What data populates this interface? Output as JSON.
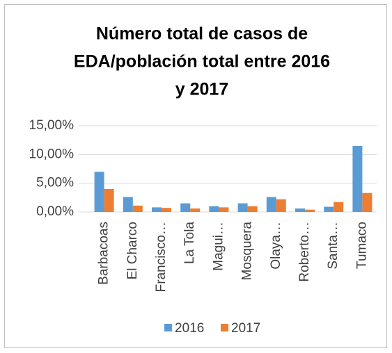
{
  "chart_data": {
    "type": "bar",
    "title": [
      "Número total de casos de",
      "EDA/población total entre 2016",
      "y 2017"
    ],
    "categories": [
      "Barbacoas",
      "El Charco",
      "Francisco…",
      "La Tola",
      "Magui…",
      "Mosquera",
      "Olaya…",
      "Roberto…",
      "Santa…",
      "Tumaco"
    ],
    "series": [
      {
        "name": "2016",
        "color": "#5b9bd5",
        "values": [
          7.0,
          2.6,
          0.8,
          1.5,
          1.0,
          1.5,
          2.6,
          0.6,
          0.9,
          11.5
        ]
      },
      {
        "name": "2017",
        "color": "#ed7d31",
        "values": [
          4.0,
          1.1,
          0.7,
          0.6,
          0.8,
          1.0,
          2.2,
          0.4,
          1.7,
          3.3
        ]
      }
    ],
    "ylim": [
      0,
      15
    ],
    "yticks": [
      {
        "value": 0,
        "label": "0,00%"
      },
      {
        "value": 5,
        "label": "5,00%"
      },
      {
        "value": 10,
        "label": "10,00%"
      },
      {
        "value": 15,
        "label": "15,00%"
      }
    ],
    "grid": true,
    "legend": "bottom"
  }
}
